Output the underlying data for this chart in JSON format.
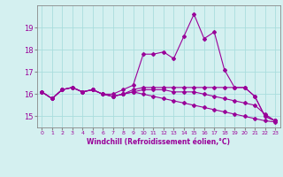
{
  "x": [
    0,
    1,
    2,
    3,
    4,
    5,
    6,
    7,
    8,
    9,
    10,
    11,
    12,
    13,
    14,
    15,
    16,
    17,
    18,
    19,
    20,
    21,
    22,
    23
  ],
  "line1": [
    16.1,
    15.8,
    16.2,
    16.3,
    16.1,
    16.2,
    16.0,
    16.0,
    16.2,
    16.4,
    17.8,
    17.8,
    17.9,
    17.6,
    18.6,
    19.6,
    18.5,
    18.8,
    17.1,
    16.3,
    16.3,
    15.9,
    15.0,
    14.8
  ],
  "line2": [
    16.1,
    15.8,
    16.2,
    16.3,
    16.1,
    16.2,
    16.0,
    15.9,
    16.0,
    16.2,
    16.3,
    16.3,
    16.3,
    16.3,
    16.3,
    16.3,
    16.3,
    16.3,
    16.3,
    16.3,
    16.3,
    15.9,
    15.0,
    14.8
  ],
  "line3": [
    16.1,
    15.8,
    16.2,
    16.3,
    16.1,
    16.2,
    16.0,
    15.9,
    16.0,
    16.1,
    16.2,
    16.2,
    16.2,
    16.1,
    16.1,
    16.1,
    16.0,
    15.9,
    15.8,
    15.7,
    15.6,
    15.5,
    15.1,
    14.8
  ],
  "line4": [
    16.1,
    15.8,
    16.2,
    16.3,
    16.1,
    16.2,
    16.0,
    15.9,
    16.0,
    16.1,
    16.0,
    15.9,
    15.8,
    15.7,
    15.6,
    15.5,
    15.4,
    15.3,
    15.2,
    15.1,
    15.0,
    14.9,
    14.8,
    14.75
  ],
  "color": "#990099",
  "bg_color": "#d4f0f0",
  "grid_color": "#aadddd",
  "xlabel": "Windchill (Refroidissement éolien,°C)",
  "ylim": [
    14.5,
    20.0
  ],
  "xlim": [
    -0.5,
    23.5
  ],
  "yticks": [
    15,
    16,
    17,
    18,
    19
  ],
  "xticks": [
    0,
    1,
    2,
    3,
    4,
    5,
    6,
    7,
    8,
    9,
    10,
    11,
    12,
    13,
    14,
    15,
    16,
    17,
    18,
    19,
    20,
    21,
    22,
    23
  ]
}
